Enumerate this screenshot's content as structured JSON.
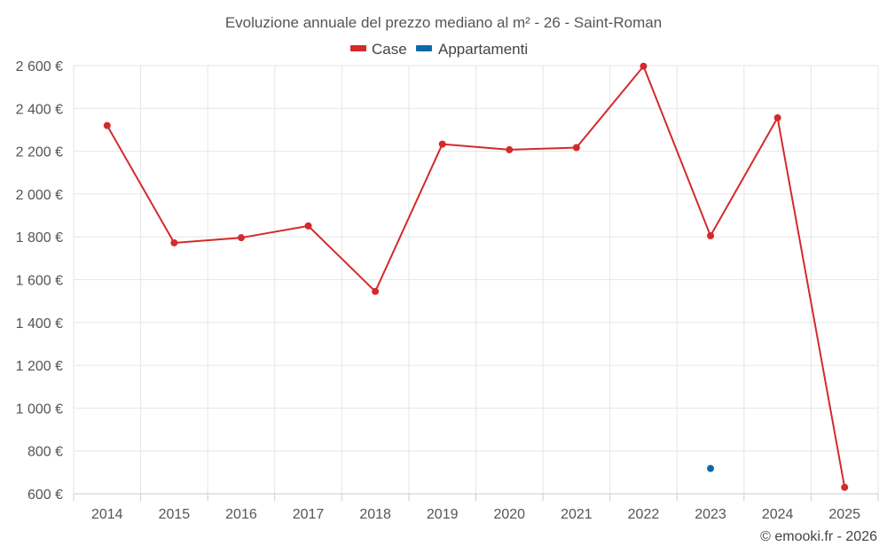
{
  "chart_data": {
    "type": "line",
    "title": "Evoluzione annuale del prezzo mediano al m² - 26 - Saint-Roman",
    "categories": [
      "2014",
      "2015",
      "2016",
      "2017",
      "2018",
      "2019",
      "2020",
      "2021",
      "2022",
      "2023",
      "2024",
      "2025"
    ],
    "series": [
      {
        "name": "Case",
        "color": "#d42a2a",
        "values": [
          2320,
          1772,
          1796,
          1851,
          1545,
          2233,
          2207,
          2217,
          2597,
          1805,
          2356,
          630
        ]
      },
      {
        "name": "Appartamenti",
        "color": "#0e6aa6",
        "values": [
          null,
          null,
          null,
          null,
          null,
          null,
          null,
          null,
          null,
          718,
          null,
          null
        ]
      }
    ],
    "ylim": [
      600,
      2600
    ],
    "yticks": [
      600,
      800,
      1000,
      1200,
      1400,
      1600,
      1800,
      2000,
      2200,
      2400,
      2600
    ],
    "ytick_labels": [
      "600 €",
      "800 €",
      "1 000 €",
      "1 200 €",
      "1 400 €",
      "1 600 €",
      "1 800 €",
      "2 000 €",
      "2 200 €",
      "2 400 €",
      "2 600 €"
    ],
    "xlabel": "",
    "ylabel": "",
    "grid": true,
    "legend_position": "top-center"
  },
  "credit": "© emooki.fr - 2026"
}
